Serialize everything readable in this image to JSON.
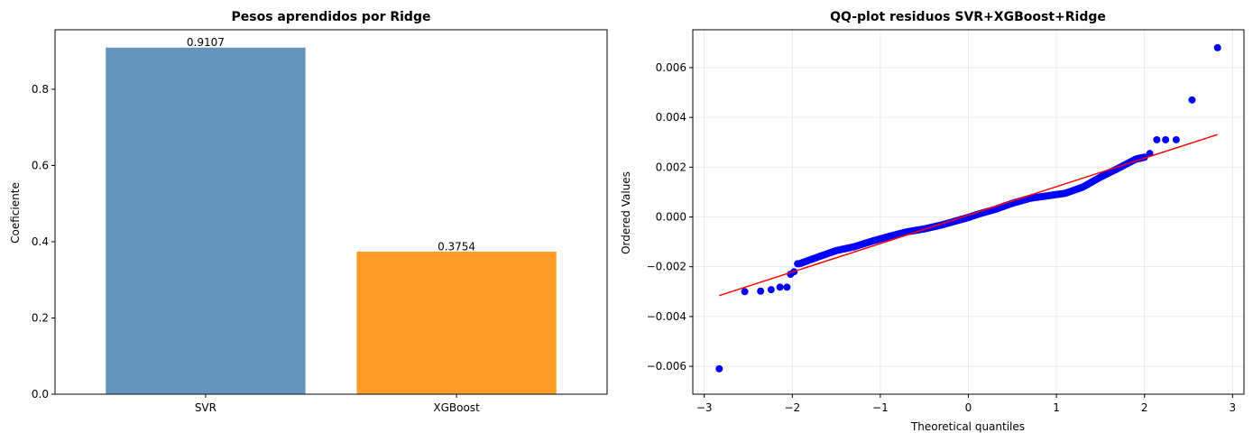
{
  "chart_data": [
    {
      "type": "bar",
      "title": "Pesos aprendidos por Ridge",
      "xlabel": "",
      "ylabel": "Coeficiente",
      "categories": [
        "SVR",
        "XGBoost"
      ],
      "values": [
        0.9107,
        0.3754
      ],
      "data_labels": [
        "0.9107",
        "0.3754"
      ],
      "colors": [
        "#6495bf",
        "#ff9c28"
      ],
      "ylim": [
        0,
        0.956
      ],
      "yticks": [
        0.0,
        0.2,
        0.4,
        0.6,
        0.8
      ],
      "ytick_labels": [
        "0.0",
        "0.2",
        "0.4",
        "0.6",
        "0.8"
      ],
      "grid": false
    },
    {
      "type": "scatter",
      "title": "QQ-plot residuos SVR+XGBoost+Ridge",
      "xlabel": "Theoretical quantiles",
      "ylabel": "Ordered Values",
      "xlim": [
        -3.13,
        3.13
      ],
      "ylim": [
        -0.00712,
        0.00752
      ],
      "xticks": [
        -3,
        -2,
        -1,
        0,
        1,
        2,
        3
      ],
      "xtick_labels": [
        "−3",
        "−2",
        "−1",
        "0",
        "1",
        "2",
        "3"
      ],
      "yticks": [
        -0.006,
        -0.004,
        -0.002,
        0.0,
        0.002,
        0.004,
        0.006
      ],
      "ytick_labels": [
        "−0.006",
        "−0.004",
        "−0.002",
        "0.000",
        "0.002",
        "0.004",
        "0.006"
      ],
      "grid": true,
      "point_color": "#0000ff",
      "line_color": "#ff0000",
      "fit_line": {
        "x": [
          -2.83,
          2.83
        ],
        "y": [
          -0.00316,
          0.00331
        ]
      },
      "points": {
        "x": [
          -2.83,
          -2.54,
          -2.36,
          -2.24,
          -2.14,
          -2.06,
          -2.02,
          -1.98,
          -1.94
        ],
        "y": [
          -0.0061,
          -0.003,
          -0.00298,
          -0.00292,
          -0.00282,
          -0.00282,
          -0.0023,
          -0.0022,
          -0.00188
        ]
      },
      "points_upper": {
        "x": [
          2.06,
          2.14,
          2.24,
          2.36,
          2.54,
          2.83
        ],
        "y": [
          0.00255,
          0.0031,
          0.0031,
          0.0031,
          0.0047,
          0.0068
        ]
      },
      "body_curve": {
        "x": [
          -1.92,
          -1.7,
          -1.5,
          -1.3,
          -1.1,
          -0.9,
          -0.7,
          -0.5,
          -0.3,
          -0.1,
          0.0,
          0.1,
          0.3,
          0.5,
          0.7,
          0.9,
          1.1,
          1.3,
          1.5,
          1.7,
          1.9,
          2.0
        ],
        "y": [
          -0.00188,
          -0.0016,
          -0.00135,
          -0.0012,
          -0.00098,
          -0.00078,
          -0.0006,
          -0.00048,
          -0.00032,
          -0.00012,
          -2e-05,
          0.0001,
          0.0003,
          0.00055,
          0.00075,
          0.00085,
          0.00095,
          0.0012,
          0.0016,
          0.00195,
          0.00232,
          0.0024
        ]
      }
    }
  ]
}
